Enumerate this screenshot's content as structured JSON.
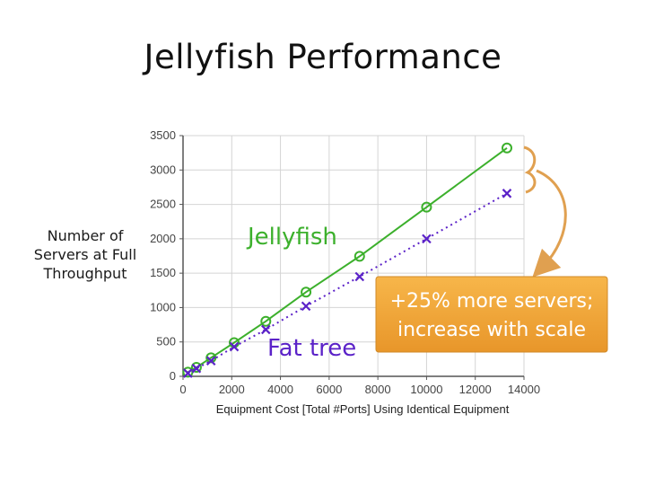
{
  "slide": {
    "title": "Jellyfish Performance"
  },
  "chart_data": {
    "type": "line",
    "title": "",
    "xlabel": "Equipment Cost [Total #Ports] Using Identical Equipment",
    "ylabel_lines": [
      "Number of",
      "Servers at Full",
      "Throughput"
    ],
    "xlim": [
      0,
      14000
    ],
    "ylim": [
      0,
      3500
    ],
    "xticks": [
      0,
      2000,
      4000,
      6000,
      8000,
      10000,
      12000,
      14000
    ],
    "yticks": [
      0,
      500,
      1000,
      1500,
      2000,
      2500,
      3000,
      3500
    ],
    "grid": true,
    "series": [
      {
        "name": "Jellyfish",
        "color": "#3cb02c",
        "marker": "circle",
        "line": "solid",
        "x": [
          200,
          550,
          1150,
          2100,
          3400,
          5050,
          7250,
          10000,
          13300
        ],
        "y": [
          60,
          130,
          270,
          490,
          800,
          1225,
          1745,
          2460,
          3320
        ]
      },
      {
        "name": "Fat tree",
        "color": "#5b22c8",
        "marker": "x",
        "line": "dotted",
        "x": [
          200,
          550,
          1150,
          2100,
          3400,
          5050,
          7250,
          10000,
          13300
        ],
        "y": [
          45,
          115,
          225,
          430,
          680,
          1020,
          1450,
          2000,
          2660
        ]
      }
    ],
    "annotation": {
      "lines": [
        "+25% more servers;",
        "increase with scale"
      ],
      "color": "#f0a030"
    }
  }
}
